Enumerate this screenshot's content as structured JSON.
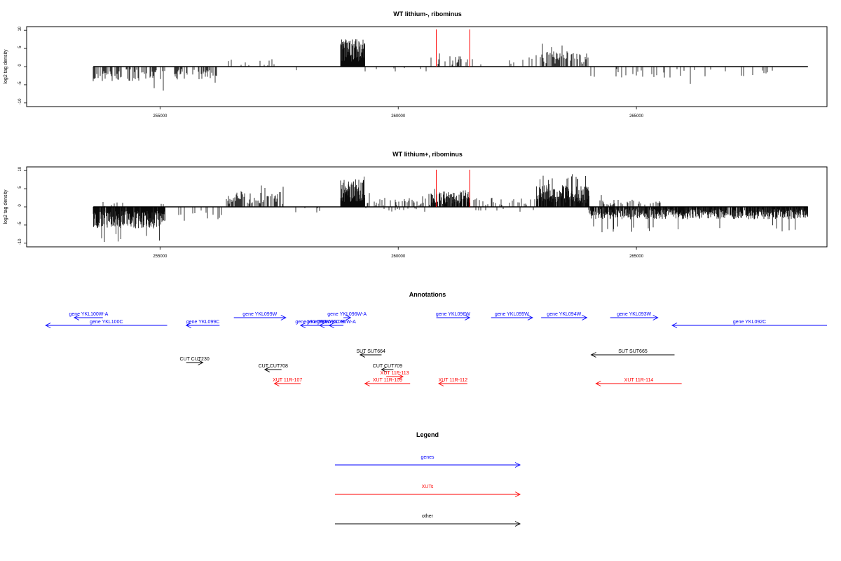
{
  "chart_data": [
    {
      "type": "bar",
      "title": "WT lithium-, ribominus",
      "ylabel": "log2 tag density",
      "xlim": [
        252200,
        269000
      ],
      "ylim": [
        -11,
        11
      ],
      "xticks": [
        255000,
        260000,
        265000
      ],
      "yticks": [
        10,
        5,
        0,
        -5,
        -10
      ],
      "baseline_range": [
        253600,
        268600
      ],
      "markers": [
        260800,
        261500
      ],
      "marker_color": "#ff0000",
      "segments": [
        {
          "start": 253600,
          "end": 255100,
          "sign": -1,
          "mean": 2.5,
          "max": 7.5,
          "density": 0.6
        },
        {
          "start": 255300,
          "end": 256200,
          "sign": -1,
          "mean": 2.2,
          "max": 5.0,
          "density": 0.6
        },
        {
          "start": 256400,
          "end": 257600,
          "sign": 1,
          "mean": 1.2,
          "max": 3.5,
          "density": 0.12
        },
        {
          "start": 257600,
          "end": 258700,
          "sign": -1,
          "mean": 0.9,
          "max": 2.0,
          "density": 0.04
        },
        {
          "start": 258800,
          "end": 259300,
          "sign": 1,
          "mean": 4.5,
          "max": 7.5,
          "density": 1.0
        },
        {
          "start": 259300,
          "end": 260700,
          "sign": -1,
          "mean": 0.8,
          "max": 1.5,
          "density": 0.04
        },
        {
          "start": 260700,
          "end": 261500,
          "sign": 1,
          "mean": 1.8,
          "max": 4.0,
          "density": 0.35
        },
        {
          "start": 261500,
          "end": 262900,
          "sign": 1,
          "mean": 1.3,
          "max": 3.0,
          "density": 0.06
        },
        {
          "start": 262900,
          "end": 264000,
          "sign": 1,
          "mean": 2.5,
          "max": 7.0,
          "density": 0.6
        },
        {
          "start": 264000,
          "end": 268600,
          "sign": -1,
          "mean": 1.8,
          "max": 5.5,
          "density": 0.12
        }
      ]
    },
    {
      "type": "bar",
      "title": "WT lithium+, ribominus",
      "ylabel": "log2 tag density",
      "xlim": [
        252200,
        269000
      ],
      "ylim": [
        -11,
        11
      ],
      "xticks": [
        255000,
        260000,
        265000
      ],
      "yticks": [
        10,
        5,
        0,
        -5,
        -10
      ],
      "baseline_range": [
        253600,
        268600
      ],
      "markers": [
        260800,
        261500
      ],
      "marker_color": "#ff0000",
      "segments": [
        {
          "start": 253600,
          "end": 255100,
          "sign": -1,
          "mean": 3.5,
          "max": 10.0,
          "density": 0.9
        },
        {
          "start": 253600,
          "end": 255100,
          "sign": 1,
          "mean": 0.8,
          "max": 3.0,
          "density": 0.08
        },
        {
          "start": 255300,
          "end": 256300,
          "sign": -1,
          "mean": 2.0,
          "max": 4.0,
          "density": 0.3
        },
        {
          "start": 256400,
          "end": 257600,
          "sign": 1,
          "mean": 2.5,
          "max": 6.0,
          "density": 0.6
        },
        {
          "start": 257600,
          "end": 258700,
          "sign": -1,
          "mean": 1.0,
          "max": 4.0,
          "density": 0.06
        },
        {
          "start": 258800,
          "end": 259300,
          "sign": 1,
          "mean": 4.5,
          "max": 9.0,
          "density": 1.0
        },
        {
          "start": 259300,
          "end": 260700,
          "sign": 1,
          "mean": 1.5,
          "max": 4.0,
          "density": 0.35
        },
        {
          "start": 259300,
          "end": 260700,
          "sign": -1,
          "mean": 0.8,
          "max": 3.0,
          "density": 0.1
        },
        {
          "start": 260700,
          "end": 261500,
          "sign": 1,
          "mean": 2.5,
          "max": 5.0,
          "density": 0.8
        },
        {
          "start": 261500,
          "end": 262900,
          "sign": 1,
          "mean": 1.5,
          "max": 4.5,
          "density": 0.25
        },
        {
          "start": 261500,
          "end": 262900,
          "sign": -1,
          "mean": 0.8,
          "max": 2.0,
          "density": 0.08
        },
        {
          "start": 262900,
          "end": 264000,
          "sign": 1,
          "mean": 3.5,
          "max": 9.0,
          "density": 0.9
        },
        {
          "start": 264000,
          "end": 268600,
          "sign": -1,
          "mean": 2.0,
          "max": 7.0,
          "density": 0.8
        },
        {
          "start": 264000,
          "end": 265600,
          "sign": 1,
          "mean": 1.2,
          "max": 3.5,
          "density": 0.3
        }
      ]
    }
  ],
  "annotations": {
    "title": "Annotations",
    "items": [
      {
        "label": "gene YKL100W-A",
        "dir": "-",
        "x1": 253200,
        "x2": 253800,
        "color": "#0000ff",
        "row": 0
      },
      {
        "label": "gene YKL100C",
        "dir": "-",
        "x1": 252600,
        "x2": 255150,
        "color": "#0000ff",
        "row": 1
      },
      {
        "label": "gene YKL099C",
        "dir": "-",
        "x1": 255550,
        "x2": 256250,
        "color": "#0000ff",
        "row": 1
      },
      {
        "label": "gene YKL099W",
        "dir": "+",
        "x1": 256550,
        "x2": 257640,
        "color": "#0000ff",
        "row": 0
      },
      {
        "label": "gene YKL097W",
        "dir": "-",
        "x1": 257950,
        "x2": 258450,
        "color": "#0000ff",
        "row": 1
      },
      {
        "label": "gene YKL096C-B",
        "dir": "-",
        "x1": 258350,
        "x2": 258600,
        "color": "#0000ff",
        "row": 1
      },
      {
        "label": "gene YKL096W-A",
        "dir": "-",
        "x1": 258550,
        "x2": 258850,
        "color": "#0000ff",
        "row": 1
      },
      {
        "label": "gene YKL096W-A",
        "dir": "+",
        "x1": 258850,
        "x2": 259000,
        "color": "#0000ff",
        "row": 0
      },
      {
        "label": "gene YKL096W",
        "dir": "+",
        "x1": 260800,
        "x2": 261500,
        "color": "#0000ff",
        "row": 0
      },
      {
        "label": "gene YKL095W",
        "dir": "+",
        "x1": 261950,
        "x2": 262820,
        "color": "#0000ff",
        "row": 0
      },
      {
        "label": "gene YKL094W",
        "dir": "+",
        "x1": 263000,
        "x2": 263960,
        "color": "#0000ff",
        "row": 0
      },
      {
        "label": "gene YKL093W",
        "dir": "+",
        "x1": 264450,
        "x2": 265450,
        "color": "#0000ff",
        "row": 0
      },
      {
        "label": "gene YKL092C",
        "dir": "-",
        "x1": 265750,
        "x2": 269000,
        "color": "#0000ff",
        "row": 1
      },
      {
        "label": "SUT SUT664",
        "dir": "-",
        "x1": 259200,
        "x2": 259650,
        "color": "#000000",
        "row": 2
      },
      {
        "label": "SUT SUT665",
        "dir": "-",
        "x1": 264050,
        "x2": 265800,
        "color": "#000000",
        "row": 2
      },
      {
        "label": "CUT CUT230",
        "dir": "+",
        "x1": 255550,
        "x2": 255900,
        "color": "#000000",
        "row": 3
      },
      {
        "label": "CUT CUT708",
        "dir": "-",
        "x1": 257200,
        "x2": 257550,
        "color": "#000000",
        "row": 4
      },
      {
        "label": "CUT CUT709",
        "dir": "-",
        "x1": 259650,
        "x2": 259900,
        "color": "#000000",
        "row": 4
      },
      {
        "label": "XUT 11F-113",
        "dir": "+",
        "x1": 259750,
        "x2": 260100,
        "color": "#ff0000",
        "row": 5
      },
      {
        "label": "XUT 11R-107",
        "dir": "-",
        "x1": 257400,
        "x2": 257950,
        "color": "#ff0000",
        "row": 6
      },
      {
        "label": "XUT 11R-109",
        "dir": "-",
        "x1": 259300,
        "x2": 260250,
        "color": "#ff0000",
        "row": 6
      },
      {
        "label": "XUT 11R-112",
        "dir": "-",
        "x1": 260850,
        "x2": 261450,
        "color": "#ff0000",
        "row": 6
      },
      {
        "label": "XUT 11R-114",
        "dir": "-",
        "x1": 264150,
        "x2": 265950,
        "color": "#ff0000",
        "row": 6
      }
    ]
  },
  "legend": {
    "title": "Legend",
    "items": [
      {
        "label": "genes",
        "color": "#0000ff"
      },
      {
        "label": "XUTs",
        "color": "#ff0000"
      },
      {
        "label": "other",
        "color": "#000000"
      }
    ]
  }
}
